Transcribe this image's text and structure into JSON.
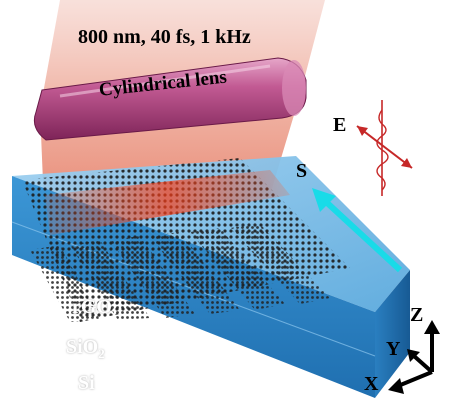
{
  "laser": {
    "params_text": "800 nm, 40 fs, 1 kHz",
    "beam_color": "#e8735e"
  },
  "lens": {
    "label": "Cylindrical lens",
    "color": "#b0477e"
  },
  "field": {
    "label": "E",
    "wave_color": "#c62828"
  },
  "scan": {
    "label": "S",
    "arrow_color": "#19dbe8"
  },
  "layers": {
    "rgo": "rGO",
    "sio2_main": "SiO",
    "sio2_sub": "2",
    "si": "Si",
    "substrate_color": "#2a86c9"
  },
  "axes": {
    "z": "Z",
    "y": "Y",
    "x": "X"
  }
}
